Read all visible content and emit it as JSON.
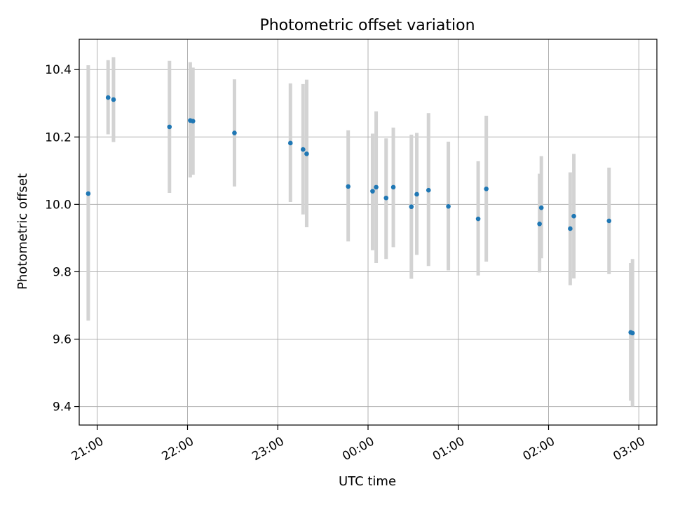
{
  "chart_data": {
    "type": "scatter",
    "title": "Photometric offset variation",
    "xlabel": "UTC time",
    "ylabel": "Photometric offset",
    "x_ticks": [
      "21:00",
      "22:00",
      "23:00",
      "00:00",
      "01:00",
      "02:00",
      "03:00"
    ],
    "x_tick_hours": [
      21,
      22,
      23,
      24,
      25,
      26,
      27
    ],
    "y_ticks": [
      "9.4",
      "9.6",
      "9.8",
      "10.0",
      "10.2",
      "10.4"
    ],
    "xlim_hours": [
      20.8,
      27.2
    ],
    "ylim": [
      9.345,
      10.49
    ],
    "grid": true,
    "colors": {
      "point": "#1f77b4",
      "errorbar": "#d3d3d3",
      "grid": "#b0b0b0"
    },
    "points": [
      {
        "t": 20.9,
        "y": 10.032,
        "lo": 9.655,
        "hi": 10.413
      },
      {
        "t": 21.12,
        "y": 10.317,
        "lo": 10.208,
        "hi": 10.428
      },
      {
        "t": 21.18,
        "y": 10.311,
        "lo": 10.185,
        "hi": 10.437
      },
      {
        "t": 21.8,
        "y": 10.23,
        "lo": 10.034,
        "hi": 10.426
      },
      {
        "t": 22.03,
        "y": 10.249,
        "lo": 10.08,
        "hi": 10.422
      },
      {
        "t": 22.06,
        "y": 10.247,
        "lo": 10.088,
        "hi": 10.406
      },
      {
        "t": 22.52,
        "y": 10.212,
        "lo": 10.053,
        "hi": 10.371
      },
      {
        "t": 23.14,
        "y": 10.182,
        "lo": 10.007,
        "hi": 10.359
      },
      {
        "t": 23.28,
        "y": 10.163,
        "lo": 9.97,
        "hi": 10.357
      },
      {
        "t": 23.32,
        "y": 10.15,
        "lo": 9.932,
        "hi": 10.37
      },
      {
        "t": 23.78,
        "y": 10.053,
        "lo": 9.89,
        "hi": 10.22
      },
      {
        "t": 24.05,
        "y": 10.039,
        "lo": 9.864,
        "hi": 10.21
      },
      {
        "t": 24.09,
        "y": 10.051,
        "lo": 9.826,
        "hi": 10.276
      },
      {
        "t": 24.2,
        "y": 10.019,
        "lo": 9.838,
        "hi": 10.196
      },
      {
        "t": 24.28,
        "y": 10.051,
        "lo": 9.873,
        "hi": 10.228
      },
      {
        "t": 24.48,
        "y": 9.993,
        "lo": 9.779,
        "hi": 10.207
      },
      {
        "t": 24.54,
        "y": 10.03,
        "lo": 9.85,
        "hi": 10.212
      },
      {
        "t": 24.67,
        "y": 10.042,
        "lo": 9.817,
        "hi": 10.271
      },
      {
        "t": 24.89,
        "y": 9.994,
        "lo": 9.804,
        "hi": 10.186
      },
      {
        "t": 25.22,
        "y": 9.957,
        "lo": 9.789,
        "hi": 10.128
      },
      {
        "t": 25.31,
        "y": 10.046,
        "lo": 9.83,
        "hi": 10.263
      },
      {
        "t": 25.9,
        "y": 9.942,
        "lo": 9.798,
        "hi": 10.091
      },
      {
        "t": 25.92,
        "y": 9.99,
        "lo": 9.84,
        "hi": 10.143
      },
      {
        "t": 26.24,
        "y": 9.928,
        "lo": 9.76,
        "hi": 10.095
      },
      {
        "t": 26.28,
        "y": 9.965,
        "lo": 9.78,
        "hi": 10.15
      },
      {
        "t": 26.67,
        "y": 9.951,
        "lo": 9.793,
        "hi": 10.109
      },
      {
        "t": 26.91,
        "y": 9.62,
        "lo": 9.417,
        "hi": 9.826
      },
      {
        "t": 26.93,
        "y": 9.618,
        "lo": 9.4,
        "hi": 9.838
      }
    ]
  }
}
